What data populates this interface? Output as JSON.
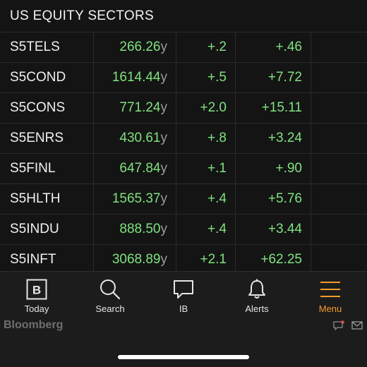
{
  "section_title": "US EQUITY SECTORS",
  "rows": [
    {
      "ticker": "S5TELS",
      "last": "266.26",
      "suffix": "y",
      "chg": "+.2",
      "pct": "+.46"
    },
    {
      "ticker": "S5COND",
      "last": "1614.44",
      "suffix": "y",
      "chg": "+.5",
      "pct": "+7.72"
    },
    {
      "ticker": "S5CONS",
      "last": "771.24",
      "suffix": "y",
      "chg": "+2.0",
      "pct": "+15.11"
    },
    {
      "ticker": "S5ENRS",
      "last": "430.61",
      "suffix": "y",
      "chg": "+.8",
      "pct": "+3.24"
    },
    {
      "ticker": "S5FINL",
      "last": "647.84",
      "suffix": "y",
      "chg": "+.1",
      "pct": "+.90"
    },
    {
      "ticker": "S5HLTH",
      "last": "1565.37",
      "suffix": "y",
      "chg": "+.4",
      "pct": "+5.76"
    },
    {
      "ticker": "S5INDU",
      "last": "888.50",
      "suffix": "y",
      "chg": "+.4",
      "pct": "+3.44"
    },
    {
      "ticker": "S5INFT",
      "last": "3068.89",
      "suffix": "y",
      "chg": "+2.1",
      "pct": "+62.25"
    }
  ],
  "tabs": [
    {
      "label": "Today",
      "icon": "bloomberg-b-icon"
    },
    {
      "label": "Search",
      "icon": "search-icon"
    },
    {
      "label": "IB",
      "icon": "chat-bubble-icon"
    },
    {
      "label": "Alerts",
      "icon": "bell-icon"
    },
    {
      "label": "Menu",
      "icon": "hamburger-icon",
      "active": true
    }
  ],
  "footer": {
    "brand": "Bloomberg"
  },
  "colors": {
    "positive": "#7fe27f",
    "accent": "#f39a2b"
  }
}
